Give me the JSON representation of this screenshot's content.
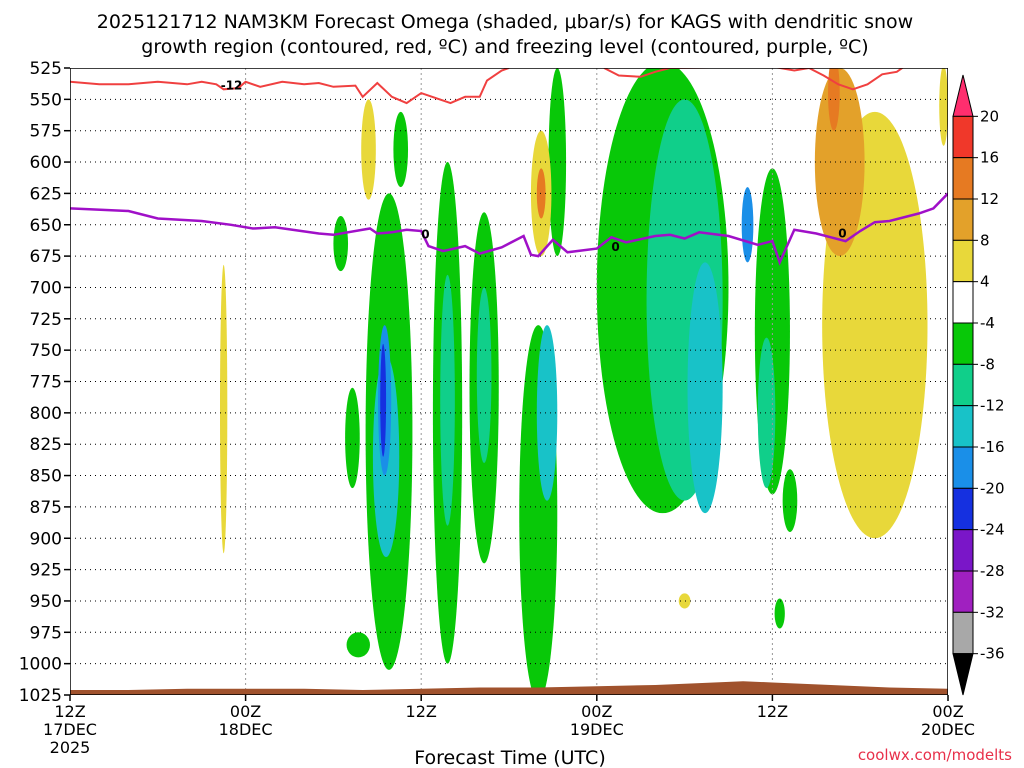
{
  "chart_data": {
    "type": "heatmap",
    "title_line1": "2025121712 NAM3KM Forecast Omega (shaded, μbar/s) for KAGS with dendritic snow",
    "title_line2": "growth region (contoured, red, ºC) and freezing level (contoured, purple, ºC)",
    "xlabel": "Forecast Time (UTC)",
    "credit": "coolwx.com/modelts",
    "y_unit": "hPa",
    "ylim": [
      1025,
      525
    ],
    "y_ticks": [
      525,
      550,
      575,
      600,
      625,
      650,
      675,
      700,
      725,
      750,
      775,
      800,
      825,
      850,
      875,
      900,
      925,
      950,
      975,
      1000,
      1025
    ],
    "xlim_hours": [
      0,
      60
    ],
    "x_ticks": [
      {
        "hour": 0,
        "line1": "12Z",
        "line2": "17DEC",
        "line3": "2025"
      },
      {
        "hour": 12,
        "line1": "00Z",
        "line2": "18DEC",
        "line3": ""
      },
      {
        "hour": 24,
        "line1": "12Z",
        "line2": "",
        "line3": ""
      },
      {
        "hour": 36,
        "line1": "00Z",
        "line2": "19DEC",
        "line3": ""
      },
      {
        "hour": 48,
        "line1": "12Z",
        "line2": "",
        "line3": ""
      },
      {
        "hour": 60,
        "line1": "00Z",
        "line2": "20DEC",
        "line3": ""
      }
    ],
    "colorbar": {
      "labels": [
        "20",
        "16",
        "12",
        "8",
        "4",
        "-4",
        "-8",
        "-12",
        "-16",
        "-20",
        "-24",
        "-28",
        "-32",
        "-36"
      ],
      "levels": [
        20,
        16,
        12,
        8,
        4,
        -4,
        -8,
        -12,
        -16,
        -20,
        -24,
        -28,
        -32,
        -36
      ],
      "colors": [
        "#ff2e6e",
        "#f0382a",
        "#e67a22",
        "#e3a12a",
        "#e8d83a",
        "#ffffff",
        "#08c808",
        "#10cf8a",
        "#18c2c8",
        "#1a8fe8",
        "#1530e0",
        "#7a16c8",
        "#a020c0",
        "#a8a8a8",
        "#000000"
      ]
    },
    "freezing_level": {
      "label": "0",
      "color": "#a010c8",
      "points": [
        [
          0,
          637
        ],
        [
          4,
          639
        ],
        [
          6,
          645
        ],
        [
          9,
          647
        ],
        [
          11,
          650
        ],
        [
          12.5,
          653
        ],
        [
          14,
          652
        ],
        [
          17,
          657
        ],
        [
          18,
          658
        ],
        [
          20.5,
          653
        ],
        [
          21,
          657
        ],
        [
          22,
          656
        ],
        [
          23,
          654
        ],
        [
          24,
          655
        ],
        [
          24.5,
          667
        ],
        [
          25.5,
          671
        ],
        [
          27,
          667
        ],
        [
          28,
          673
        ],
        [
          29.5,
          668
        ],
        [
          31,
          659
        ],
        [
          31.5,
          674
        ],
        [
          32,
          675
        ],
        [
          33,
          662
        ],
        [
          34,
          672
        ],
        [
          36,
          669
        ],
        [
          37,
          660
        ],
        [
          38,
          664
        ],
        [
          40,
          659
        ],
        [
          41,
          658
        ],
        [
          42,
          661
        ],
        [
          43,
          656
        ],
        [
          45,
          659
        ],
        [
          47,
          666
        ],
        [
          48,
          663
        ],
        [
          48.5,
          680
        ],
        [
          49.5,
          654
        ],
        [
          51,
          657
        ],
        [
          52,
          660
        ],
        [
          53,
          663
        ],
        [
          54,
          655
        ],
        [
          55,
          648
        ],
        [
          56,
          647
        ],
        [
          58,
          641
        ],
        [
          59,
          637
        ],
        [
          60,
          625
        ]
      ]
    },
    "dgz_contour": {
      "label": "-12",
      "color": "#f04040",
      "points": [
        [
          0,
          536
        ],
        [
          2,
          538
        ],
        [
          4,
          538
        ],
        [
          6,
          536
        ],
        [
          8,
          538
        ],
        [
          9,
          536
        ],
        [
          10,
          538
        ],
        [
          10.5,
          542
        ],
        [
          11.5,
          541
        ],
        [
          12,
          536
        ],
        [
          13,
          540
        ],
        [
          14.5,
          536
        ],
        [
          16,
          538
        ],
        [
          17,
          537
        ],
        [
          18,
          540
        ],
        [
          19.5,
          539
        ],
        [
          20,
          548
        ],
        [
          21,
          537
        ],
        [
          22,
          548
        ],
        [
          23,
          553
        ],
        [
          24,
          545
        ],
        [
          25,
          549
        ],
        [
          26,
          553
        ],
        [
          27,
          548
        ],
        [
          28,
          548
        ],
        [
          28.5,
          535
        ],
        [
          29.5,
          527
        ],
        [
          30,
          525
        ]
      ]
    },
    "dgz_contour_right": {
      "label": "-12",
      "color": "#f04040",
      "points": [
        [
          36.5,
          525
        ],
        [
          37.5,
          531
        ],
        [
          39,
          532
        ],
        [
          40,
          528
        ],
        [
          41,
          525
        ],
        [
          48,
          524
        ],
        [
          49.5,
          527
        ],
        [
          50.5,
          525
        ],
        [
          51.5,
          531
        ],
        [
          52.5,
          538
        ],
        [
          53.5,
          542
        ],
        [
          54.5,
          538
        ],
        [
          55.5,
          530
        ],
        [
          56.5,
          528
        ],
        [
          57,
          524
        ]
      ]
    },
    "omega_blobs": [
      {
        "color": "#08c808",
        "cx": 18.5,
        "cy": 665,
        "rx": 0.5,
        "ry": 22
      },
      {
        "color": "#e8d83a",
        "cx": 10.5,
        "cy": 797,
        "rx": 0.25,
        "ry": 115
      },
      {
        "color": "#e8d83a",
        "cx": 20.4,
        "cy": 590,
        "rx": 0.5,
        "ry": 40
      },
      {
        "color": "#08c808",
        "cx": 19.3,
        "cy": 820,
        "rx": 0.5,
        "ry": 40
      },
      {
        "color": "#08c808",
        "cx": 21.8,
        "cy": 815,
        "rx": 1.6,
        "ry": 190
      },
      {
        "color": "#18c2c8",
        "cx": 21.6,
        "cy": 835,
        "rx": 0.9,
        "ry": 80
      },
      {
        "color": "#1a8fe8",
        "cx": 21.5,
        "cy": 790,
        "rx": 0.45,
        "ry": 60
      },
      {
        "color": "#1530e0",
        "cx": 21.4,
        "cy": 790,
        "rx": 0.2,
        "ry": 45
      },
      {
        "color": "#08c808",
        "cx": 22.6,
        "cy": 590,
        "rx": 0.5,
        "ry": 30
      },
      {
        "color": "#08c808",
        "cx": 25.8,
        "cy": 800,
        "rx": 1.0,
        "ry": 200
      },
      {
        "color": "#10cf8a",
        "cx": 25.8,
        "cy": 790,
        "rx": 0.5,
        "ry": 100
      },
      {
        "color": "#08c808",
        "cx": 28.3,
        "cy": 780,
        "rx": 1.0,
        "ry": 140
      },
      {
        "color": "#10cf8a",
        "cx": 28.3,
        "cy": 770,
        "rx": 0.5,
        "ry": 70
      },
      {
        "color": "#08c808",
        "cx": 32.0,
        "cy": 880,
        "rx": 1.3,
        "ry": 150
      },
      {
        "color": "#08c808",
        "cx": 33.3,
        "cy": 600,
        "rx": 0.6,
        "ry": 75
      },
      {
        "color": "#18c2c8",
        "cx": 32.6,
        "cy": 800,
        "rx": 0.7,
        "ry": 70
      },
      {
        "color": "#e8d83a",
        "cx": 32.2,
        "cy": 625,
        "rx": 0.7,
        "ry": 50
      },
      {
        "color": "#e67a22",
        "cx": 32.2,
        "cy": 625,
        "rx": 0.3,
        "ry": 20
      },
      {
        "color": "#08c808",
        "cx": 40.5,
        "cy": 700,
        "rx": 4.5,
        "ry": 180
      },
      {
        "color": "#10cf8a",
        "cx": 42.0,
        "cy": 710,
        "rx": 2.6,
        "ry": 160
      },
      {
        "color": "#18c2c8",
        "cx": 43.4,
        "cy": 780,
        "rx": 1.2,
        "ry": 100
      },
      {
        "color": "#1a8fe8",
        "cx": 46.3,
        "cy": 650,
        "rx": 0.4,
        "ry": 30
      },
      {
        "color": "#08c808",
        "cx": 48.0,
        "cy": 735,
        "rx": 1.2,
        "ry": 130
      },
      {
        "color": "#10cf8a",
        "cx": 47.6,
        "cy": 800,
        "rx": 0.6,
        "ry": 60
      },
      {
        "color": "#08c808",
        "cx": 49.2,
        "cy": 870,
        "rx": 0.5,
        "ry": 25
      },
      {
        "color": "#08c808",
        "cx": 48.5,
        "cy": 960,
        "rx": 0.35,
        "ry": 12
      },
      {
        "color": "#e8d83a",
        "cx": 55.0,
        "cy": 730,
        "rx": 3.6,
        "ry": 170
      },
      {
        "color": "#e3a12a",
        "cx": 52.6,
        "cy": 600,
        "rx": 1.7,
        "ry": 75
      },
      {
        "color": "#e67a22",
        "cx": 52.2,
        "cy": 545,
        "rx": 0.4,
        "ry": 30
      },
      {
        "color": "#e8d83a",
        "cx": 59.7,
        "cy": 555,
        "rx": 0.3,
        "ry": 32
      },
      {
        "color": "#e8d83a",
        "cx": 42.0,
        "cy": 950,
        "rx": 0.4,
        "ry": 6
      },
      {
        "color": "#08c808",
        "cx": 19.7,
        "cy": 985,
        "rx": 0.8,
        "ry": 10
      }
    ],
    "terrain": {
      "color": "#a0522d",
      "points": [
        [
          0,
          1021
        ],
        [
          4,
          1021
        ],
        [
          8,
          1020
        ],
        [
          12,
          1020
        ],
        [
          16,
          1020
        ],
        [
          20,
          1021
        ],
        [
          24,
          1020
        ],
        [
          28,
          1019
        ],
        [
          32,
          1019
        ],
        [
          36,
          1018
        ],
        [
          40,
          1017
        ],
        [
          44,
          1015
        ],
        [
          46,
          1014
        ],
        [
          48,
          1015
        ],
        [
          52,
          1017
        ],
        [
          56,
          1019
        ],
        [
          60,
          1020
        ]
      ]
    }
  }
}
